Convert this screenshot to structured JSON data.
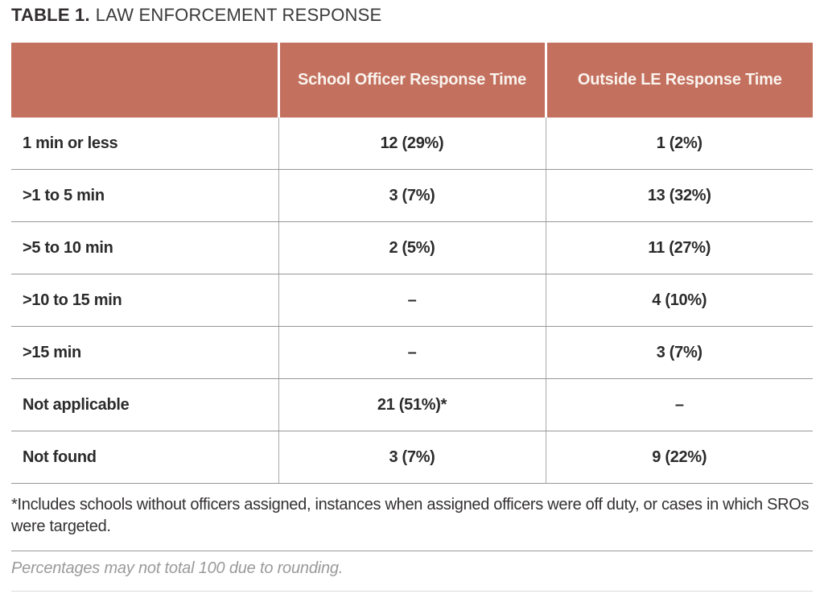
{
  "title": {
    "prefix": "TABLE 1.",
    "rest": "LAW ENFORCEMENT RESPONSE"
  },
  "table": {
    "columns": [
      "",
      "School Officer Response Time",
      "Outside LE Response Time"
    ],
    "rows": [
      {
        "label": "1 min or less",
        "school_officer": "12 (29%)",
        "outside_le": "1 (2%)"
      },
      {
        "label": ">1 to 5 min",
        "school_officer": "3 (7%)",
        "outside_le": "13 (32%)"
      },
      {
        "label": ">5 to 10 min",
        "school_officer": "2 (5%)",
        "outside_le": "11 (27%)"
      },
      {
        "label": ">10 to 15 min",
        "school_officer": "–",
        "outside_le": "4 (10%)"
      },
      {
        "label": ">15 min",
        "school_officer": "–",
        "outside_le": "3 (7%)"
      },
      {
        "label": "Not applicable",
        "school_officer": "21 (51%)*",
        "outside_le": "–"
      },
      {
        "label": "Not found",
        "school_officer": "3 (7%)",
        "outside_le": "9 (22%)"
      }
    ]
  },
  "footnotes": {
    "asterisk": "*Includes schools without officers assigned, instances when assigned officers were off duty, or cases in which SROs were targeted.",
    "rounding": "Percentages may not total 100 due to rounding."
  },
  "colors": {
    "header_bg": "#c4705f",
    "header_text": "#f9f4ee",
    "body_text": "#2b2b2b",
    "grid_line": "#979797",
    "note_gray": "#9a9a9a"
  }
}
